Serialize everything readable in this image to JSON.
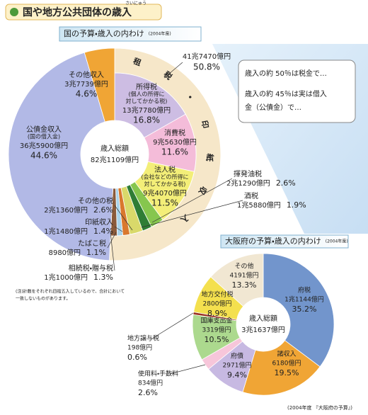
{
  "header": {
    "title": "国や地方公共団体の歳入",
    "ruby": "さいにゅう"
  },
  "callout": [
    "歳入の約 50％は税金で…",
    "歳入の約 45％は実は借入",
    "金（公債金）で…"
  ],
  "note": [
    "(注)計数をそれぞれ四捨五入しているので、合計において",
    "一致しないものがあります。"
  ],
  "chart_data": [
    {
      "type": "donut",
      "title": "国の予算・歳入の内わけ",
      "subtitle": "(2004年度)",
      "center_label": "歳入総額",
      "total": "82兆1109億円",
      "categories": [
        "所得税",
        "消費税",
        "法人税",
        "揮発油税",
        "酒税",
        "その他の税",
        "印紙収入",
        "たばこ税",
        "相続税・贈与税",
        "公債金収入",
        "その他収入"
      ],
      "notes": [
        [
          "(個人の所得に",
          "対してかかる税)"
        ],
        null,
        [
          "(会社などの所得に",
          "対してかかる税)"
        ],
        null,
        null,
        null,
        null,
        null,
        null,
        [
          "(国の借入金)"
        ],
        null
      ],
      "amounts": [
        "13兆7780億円",
        "9兆5630億円",
        "9兆4070億円",
        "2兆1290億円",
        "1兆5880億円",
        "2兆1360億円",
        "1兆1480億円",
        "8980億円",
        "1兆1000億円",
        "36兆5900億円",
        "3兆7739億円"
      ],
      "values": [
        16.8,
        11.6,
        11.5,
        2.6,
        1.9,
        2.6,
        1.4,
        1.1,
        1.3,
        44.6,
        4.6
      ],
      "value_labels": [
        "16.8%",
        "11.6%",
        "11.5%",
        "2.6%",
        "1.9%",
        "2.6%",
        "1.4%",
        "1.1%",
        "1.3%",
        "44.6%",
        "4.6%"
      ],
      "colors": [
        "#cdbde3",
        "#f4bcd9",
        "#f3ee78",
        "#86c64e",
        "#2f7d35",
        "#d9d96a",
        "#d9782e",
        "#a9d3ea",
        "#8a5a3a",
        "#b2b9e6",
        "#f0a535"
      ],
      "ring": {
        "name": "租税・印紙収入",
        "amount": "41兆7470億円",
        "value": 50.8,
        "value_label": "50.8%",
        "color": "#f6e7c9"
      }
    },
    {
      "type": "donut",
      "title": "大阪府の予算・歳入の内わけ",
      "subtitle": "(2004年度)",
      "center_label": "歳入総額",
      "total": "3兆1637億円",
      "categories": [
        "府税",
        "諸収入",
        "府債",
        "使用料・手数料",
        "国庫支出金",
        "地方譲与税",
        "地方交付税",
        "その他"
      ],
      "amounts": [
        "1兆1144億円",
        "6180億円",
        "2971億円",
        "834億円",
        "3319億円",
        "198億円",
        "2800億円",
        "4191億円"
      ],
      "values": [
        35.2,
        19.5,
        9.4,
        2.6,
        10.5,
        0.6,
        8.9,
        13.3
      ],
      "value_labels": [
        "35.2%",
        "19.5%",
        "9.4%",
        "2.6%",
        "10.5%",
        "0.6%",
        "8.9%",
        "13.3%"
      ],
      "colors": [
        "#7295cc",
        "#f0a535",
        "#c7b9e2",
        "#f7c6da",
        "#acd98e",
        "#9b3222",
        "#f4e04e",
        "#f1e7d2"
      ],
      "source": "(2004年度 『大阪府の予算』)"
    }
  ]
}
